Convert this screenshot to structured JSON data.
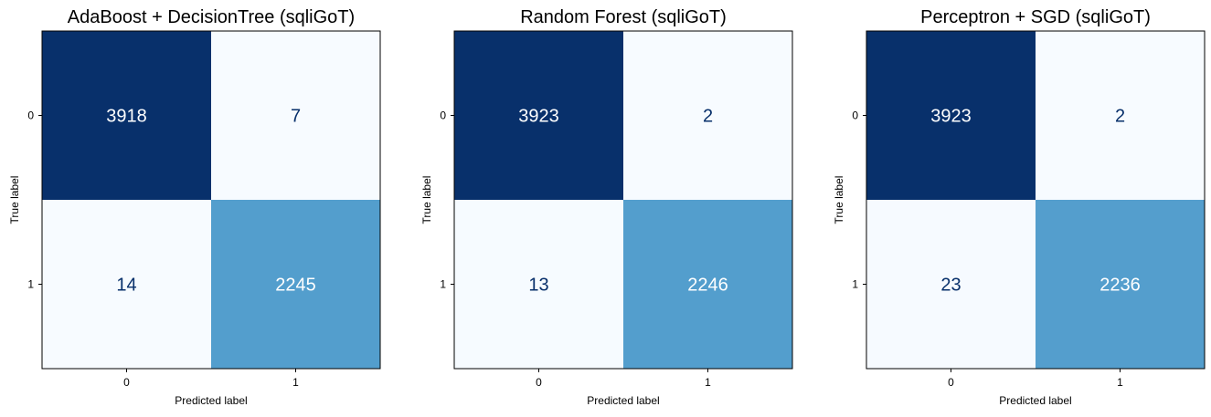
{
  "colors": {
    "dark": "#08306b",
    "light": "#f7fbff",
    "mid": "#539ecd",
    "text_on_dark": "#ffffff",
    "text_on_light": "#08306b"
  },
  "chart_data": [
    {
      "type": "heatmap",
      "title": "AdaBoost + DecisionTree (sqliGoT)",
      "xlabel": "Predicted label",
      "ylabel": "True label",
      "x_ticks": [
        "0",
        "1"
      ],
      "y_ticks": [
        "0",
        "1"
      ],
      "matrix": [
        [
          3918,
          7
        ],
        [
          14,
          2245
        ]
      ],
      "colormap": "Blues",
      "grid": false
    },
    {
      "type": "heatmap",
      "title": "Random Forest (sqliGoT)",
      "xlabel": "Predicted label",
      "ylabel": "True label",
      "x_ticks": [
        "0",
        "1"
      ],
      "y_ticks": [
        "0",
        "1"
      ],
      "matrix": [
        [
          3923,
          2
        ],
        [
          13,
          2246
        ]
      ],
      "colormap": "Blues",
      "grid": false
    },
    {
      "type": "heatmap",
      "title": "Perceptron + SGD (sqliGoT)",
      "xlabel": "Predicted label",
      "ylabel": "True label",
      "x_ticks": [
        "0",
        "1"
      ],
      "y_ticks": [
        "0",
        "1"
      ],
      "matrix": [
        [
          3923,
          2
        ],
        [
          23,
          2236
        ]
      ],
      "colormap": "Blues",
      "grid": false
    }
  ]
}
